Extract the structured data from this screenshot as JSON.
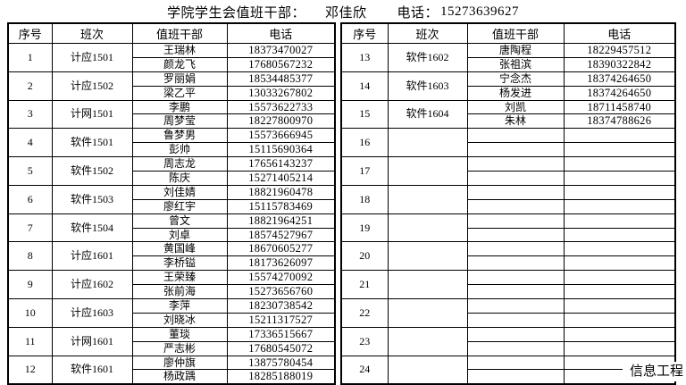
{
  "title": {
    "label": "学院学生会值班干部：",
    "leader_name": "邓佳欣",
    "phone_label": "电话：",
    "phone": "15273639627"
  },
  "watermark": "信息工程",
  "table": {
    "headers": [
      "序号",
      "班次",
      "值班干部",
      "电话"
    ],
    "left_rows": [
      {
        "no": "1",
        "class": "计应1501",
        "staff": [
          {
            "name": "王瑞林",
            "phone": "18373470027"
          },
          {
            "name": "颜龙飞",
            "phone": "17680567232"
          }
        ]
      },
      {
        "no": "2",
        "class": "计应1502",
        "staff": [
          {
            "name": "罗丽娟",
            "phone": "18534485377"
          },
          {
            "name": "梁乙平",
            "phone": "13033267802"
          }
        ]
      },
      {
        "no": "3",
        "class": "计网1501",
        "staff": [
          {
            "name": "李鹏",
            "phone": "15573622733"
          },
          {
            "name": "周梦莹",
            "phone": "18227800970"
          }
        ]
      },
      {
        "no": "4",
        "class": "软件1501",
        "staff": [
          {
            "name": "鲁梦男",
            "phone": "15573666945"
          },
          {
            "name": "彭帅",
            "phone": "15115690364"
          }
        ]
      },
      {
        "no": "5",
        "class": "软件1502",
        "staff": [
          {
            "name": "周志龙",
            "phone": "17656143237"
          },
          {
            "name": "陈庆",
            "phone": "15271405214"
          }
        ]
      },
      {
        "no": "6",
        "class": "软件1503",
        "staff": [
          {
            "name": "刘佳婧",
            "phone": "18821960478"
          },
          {
            "name": "廖红宇",
            "phone": "15115783469"
          }
        ]
      },
      {
        "no": "7",
        "class": "软件1504",
        "staff": [
          {
            "name": "曾文",
            "phone": "18821964251"
          },
          {
            "name": "刘卓",
            "phone": "18574527967"
          }
        ]
      },
      {
        "no": "8",
        "class": "计应1601",
        "staff": [
          {
            "name": "黄国峰",
            "phone": "18670605277"
          },
          {
            "name": "李桥镒",
            "phone": "18173626097"
          }
        ]
      },
      {
        "no": "9",
        "class": "计应1602",
        "staff": [
          {
            "name": "王荣臻",
            "phone": "15574270092"
          },
          {
            "name": "张前海",
            "phone": "15273656760"
          }
        ]
      },
      {
        "no": "10",
        "class": "计应1603",
        "staff": [
          {
            "name": "李萍",
            "phone": "18230738542"
          },
          {
            "name": "刘晓冰",
            "phone": "15211317527"
          }
        ]
      },
      {
        "no": "11",
        "class": "计网1601",
        "staff": [
          {
            "name": "董琰",
            "phone": "17336515667"
          },
          {
            "name": "严志彬",
            "phone": "17680545072"
          }
        ]
      },
      {
        "no": "12",
        "class": "软件1601",
        "staff": [
          {
            "name": "廖仲旗",
            "phone": "13875780454"
          },
          {
            "name": "杨政踽",
            "phone": "18285188019"
          }
        ]
      }
    ],
    "right_rows": [
      {
        "no": "13",
        "class": "软件1602",
        "staff": [
          {
            "name": "唐陶程",
            "phone": "18229457512"
          },
          {
            "name": "张祖滨",
            "phone": "18390322842"
          }
        ]
      },
      {
        "no": "14",
        "class": "软件1603",
        "staff": [
          {
            "name": "宁念杰",
            "phone": "18374264650"
          },
          {
            "name": "杨发进",
            "phone": "18374264650"
          }
        ]
      },
      {
        "no": "15",
        "class": "软件1604",
        "staff": [
          {
            "name": "刘凯",
            "phone": "18711458740"
          },
          {
            "name": "朱林",
            "phone": "18374788626"
          }
        ]
      },
      {
        "no": "16",
        "class": "",
        "staff": [
          {
            "name": "",
            "phone": ""
          },
          {
            "name": "",
            "phone": ""
          }
        ]
      },
      {
        "no": "17",
        "class": "",
        "staff": [
          {
            "name": "",
            "phone": ""
          },
          {
            "name": "",
            "phone": ""
          }
        ]
      },
      {
        "no": "18",
        "class": "",
        "staff": [
          {
            "name": "",
            "phone": ""
          },
          {
            "name": "",
            "phone": ""
          }
        ]
      },
      {
        "no": "19",
        "class": "",
        "staff": [
          {
            "name": "",
            "phone": ""
          },
          {
            "name": "",
            "phone": ""
          }
        ]
      },
      {
        "no": "20",
        "class": "",
        "staff": [
          {
            "name": "",
            "phone": ""
          },
          {
            "name": "",
            "phone": ""
          }
        ]
      },
      {
        "no": "21",
        "class": "",
        "staff": [
          {
            "name": "",
            "phone": ""
          },
          {
            "name": "",
            "phone": ""
          }
        ]
      },
      {
        "no": "22",
        "class": "",
        "staff": [
          {
            "name": "",
            "phone": ""
          },
          {
            "name": "",
            "phone": ""
          }
        ]
      },
      {
        "no": "23",
        "class": "",
        "staff": [
          {
            "name": "",
            "phone": ""
          },
          {
            "name": "",
            "phone": ""
          }
        ]
      },
      {
        "no": "24",
        "class": "",
        "staff": [
          {
            "name": "",
            "phone": ""
          },
          {
            "name": "",
            "phone": ""
          }
        ]
      }
    ]
  }
}
